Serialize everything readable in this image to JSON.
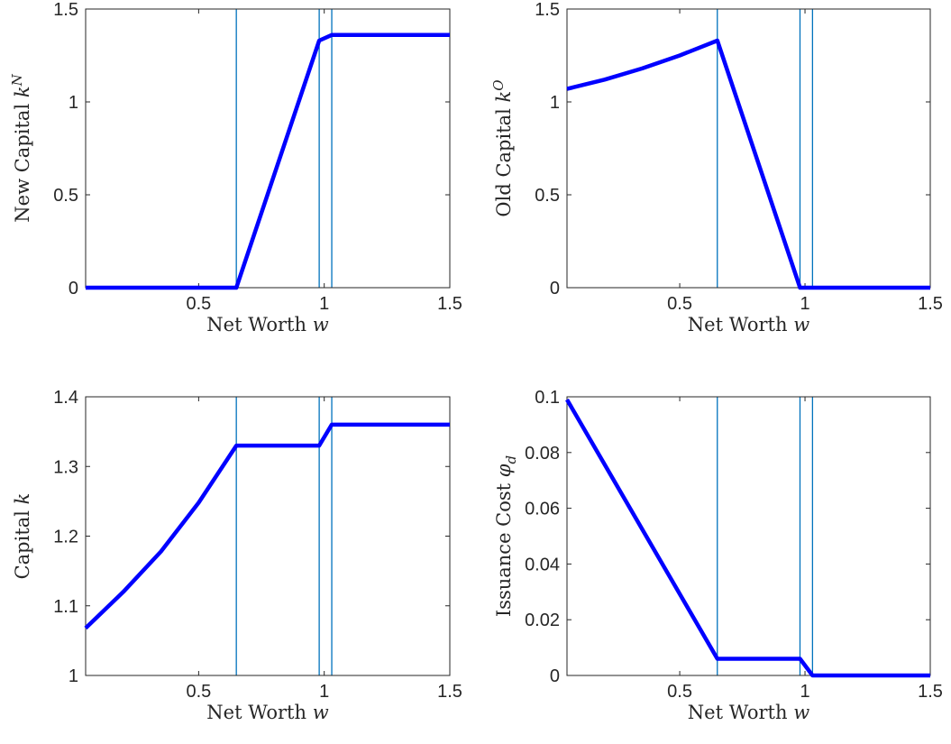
{
  "chart_data": [
    {
      "type": "line",
      "panel": "top-left",
      "xlabel": "Net Worth",
      "xlabel_var": "w",
      "ylabel": "New Capital",
      "ylabel_var": "k",
      "ylabel_sup": "N",
      "ylabel_sub": "",
      "xlim": [
        0.05,
        1.5
      ],
      "ylim": [
        0,
        1.5
      ],
      "xticks": [
        0.5,
        1,
        1.5
      ],
      "xtick_labels": [
        "0.5",
        "1",
        "1.5"
      ],
      "yticks": [
        0,
        0.5,
        1,
        1.5
      ],
      "ytick_labels": [
        "0",
        "0.5",
        "1",
        "1.5"
      ],
      "vlines": [
        0.65,
        0.98,
        1.03
      ],
      "series": [
        {
          "x": [
            0.05,
            0.65,
            0.98,
            1.03,
            1.5
          ],
          "y": [
            0,
            0,
            1.33,
            1.36,
            1.36
          ]
        }
      ]
    },
    {
      "type": "line",
      "panel": "top-right",
      "xlabel": "Net Worth",
      "xlabel_var": "w",
      "ylabel": "Old Capital",
      "ylabel_var": "k",
      "ylabel_sup": "O",
      "ylabel_sub": "",
      "xlim": [
        0.05,
        1.5
      ],
      "ylim": [
        0,
        1.5
      ],
      "xticks": [
        0.5,
        1,
        1.5
      ],
      "xtick_labels": [
        "0.5",
        "1",
        "1.5"
      ],
      "yticks": [
        0,
        0.5,
        1,
        1.5
      ],
      "ytick_labels": [
        "0",
        "0.5",
        "1",
        "1.5"
      ],
      "vlines": [
        0.65,
        0.98,
        1.03
      ],
      "series": [
        {
          "x": [
            0.05,
            0.2,
            0.35,
            0.5,
            0.65,
            0.98,
            1.03,
            1.5
          ],
          "y": [
            1.07,
            1.12,
            1.18,
            1.25,
            1.33,
            0,
            0,
            0
          ]
        }
      ]
    },
    {
      "type": "line",
      "panel": "bottom-left",
      "xlabel": "Net Worth",
      "xlabel_var": "w",
      "ylabel": "Capital",
      "ylabel_var": "k",
      "ylabel_sup": "",
      "ylabel_sub": "",
      "xlim": [
        0.05,
        1.5
      ],
      "ylim": [
        1,
        1.4
      ],
      "xticks": [
        0.5,
        1,
        1.5
      ],
      "xtick_labels": [
        "0.5",
        "1",
        "1.5"
      ],
      "yticks": [
        1,
        1.1,
        1.2,
        1.3,
        1.4
      ],
      "ytick_labels": [
        "1",
        "1.1",
        "1.2",
        "1.3",
        "1.4"
      ],
      "vlines": [
        0.65,
        0.98,
        1.03
      ],
      "series": [
        {
          "x": [
            0.05,
            0.2,
            0.35,
            0.5,
            0.65,
            0.98,
            1.03,
            1.5
          ],
          "y": [
            1.068,
            1.12,
            1.178,
            1.248,
            1.33,
            1.33,
            1.36,
            1.36
          ]
        }
      ]
    },
    {
      "type": "line",
      "panel": "bottom-right",
      "xlabel": "Net Worth",
      "xlabel_var": "w",
      "ylabel": "Issuance Cost",
      "ylabel_var": "φ",
      "ylabel_sup": "",
      "ylabel_sub": "d",
      "xlim": [
        0.05,
        1.5
      ],
      "ylim": [
        0,
        0.1
      ],
      "xticks": [
        0.5,
        1,
        1.5
      ],
      "xtick_labels": [
        "0.5",
        "1",
        "1.5"
      ],
      "yticks": [
        0,
        0.02,
        0.04,
        0.06,
        0.08,
        0.1
      ],
      "ytick_labels": [
        "0",
        "0.02",
        "0.04",
        "0.06",
        "0.08",
        "0.1"
      ],
      "vlines": [
        0.65,
        0.98,
        1.03
      ],
      "series": [
        {
          "x": [
            0.05,
            0.65,
            0.98,
            1.03,
            1.5
          ],
          "y": [
            0.099,
            0.006,
            0.006,
            0,
            0
          ]
        }
      ]
    }
  ]
}
